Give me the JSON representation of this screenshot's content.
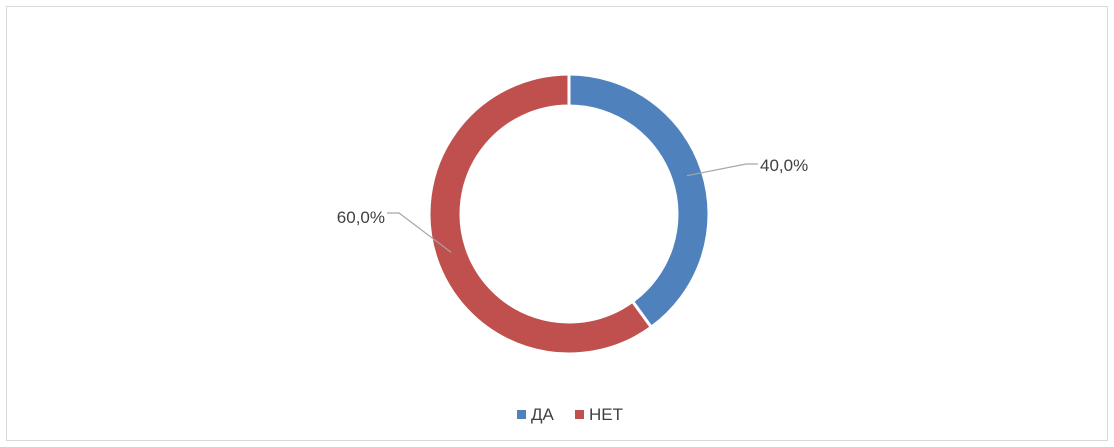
{
  "chart_data": {
    "type": "pie",
    "variant": "doughnut",
    "title": "",
    "categories": [
      "ДА",
      "НЕТ"
    ],
    "values": [
      40.0,
      60.0
    ],
    "data_labels": [
      "40,0%",
      "60,0%"
    ],
    "colors": [
      "#4f81bd",
      "#c0504d"
    ],
    "legend": {
      "position": "bottom",
      "entries": [
        "ДА",
        "НЕТ"
      ]
    }
  }
}
